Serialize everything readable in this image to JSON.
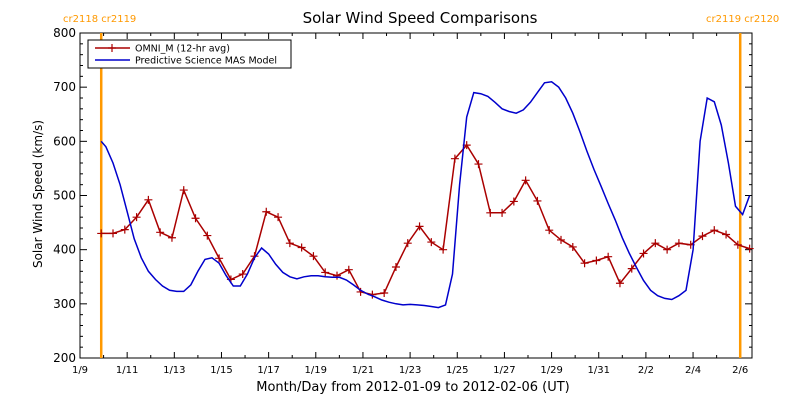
{
  "chart_data": {
    "type": "line",
    "title": "Solar Wind Speed Comparisons",
    "xlabel": "Month/Day from 2012-01-09 to 2012-02-06 (UT)",
    "ylabel": "Solar Wind Speed (km/s)",
    "xlim": [
      0,
      28.5
    ],
    "ylim": [
      200,
      800
    ],
    "x_ticks": [
      {
        "x": 0,
        "label": "1/9"
      },
      {
        "x": 2,
        "label": "1/11"
      },
      {
        "x": 4,
        "label": "1/13"
      },
      {
        "x": 6,
        "label": "1/15"
      },
      {
        "x": 8,
        "label": "1/17"
      },
      {
        "x": 10,
        "label": "1/19"
      },
      {
        "x": 12,
        "label": "1/21"
      },
      {
        "x": 14,
        "label": "1/23"
      },
      {
        "x": 16,
        "label": "1/25"
      },
      {
        "x": 18,
        "label": "1/27"
      },
      {
        "x": 20,
        "label": "1/29"
      },
      {
        "x": 22,
        "label": "1/31"
      },
      {
        "x": 24,
        "label": "2/2"
      },
      {
        "x": 26,
        "label": "2/4"
      },
      {
        "x": 28,
        "label": "2/6"
      }
    ],
    "y_ticks": [
      200,
      300,
      400,
      500,
      600,
      700,
      800
    ],
    "legend_position": "top-left",
    "series": [
      {
        "name": "OMNI_M (12-hr avg)",
        "color": "#aa0000",
        "marker": "plus",
        "x": [
          0.9,
          1.4,
          1.9,
          2.4,
          2.9,
          3.4,
          3.9,
          4.4,
          4.9,
          5.4,
          5.9,
          6.4,
          6.9,
          7.4,
          7.9,
          8.4,
          8.9,
          9.4,
          9.9,
          10.4,
          10.9,
          11.4,
          11.9,
          12.4,
          12.9,
          13.4,
          13.9,
          14.4,
          14.9,
          15.4,
          15.9,
          16.4,
          16.9,
          17.4,
          17.9,
          18.4,
          18.9,
          19.4,
          19.9,
          20.4,
          20.9,
          21.4,
          21.9,
          22.4,
          22.9,
          23.4,
          23.9,
          24.4,
          24.9,
          25.4,
          25.9,
          26.4,
          26.9,
          27.4,
          27.9,
          28.4
        ],
        "y": [
          430,
          430,
          437,
          460,
          492,
          432,
          422,
          510,
          458,
          426,
          384,
          345,
          355,
          388,
          470,
          460,
          412,
          404,
          388,
          358,
          352,
          363,
          322,
          317,
          320,
          368,
          412,
          443,
          414,
          400,
          568,
          593,
          558,
          468,
          468,
          489,
          528,
          490,
          436,
          418,
          405,
          375,
          380,
          387,
          338,
          365,
          393,
          412,
          400,
          412,
          409,
          425,
          436,
          428,
          409,
          402
        ]
      },
      {
        "name": "Predictive Science MAS Model",
        "color": "#0000cc",
        "marker": "none",
        "x": [
          0.9,
          1.1,
          1.4,
          1.7,
          2.0,
          2.3,
          2.6,
          2.9,
          3.2,
          3.5,
          3.8,
          4.1,
          4.4,
          4.7,
          5.0,
          5.3,
          5.6,
          5.9,
          6.2,
          6.5,
          6.8,
          7.1,
          7.4,
          7.7,
          8.0,
          8.3,
          8.6,
          8.9,
          9.2,
          9.5,
          9.8,
          10.1,
          10.4,
          10.7,
          11.0,
          11.3,
          11.6,
          11.9,
          12.2,
          12.5,
          12.8,
          13.1,
          13.4,
          13.7,
          14.0,
          14.3,
          14.6,
          14.9,
          15.2,
          15.5,
          15.8,
          16.1,
          16.4,
          16.7,
          17.0,
          17.3,
          17.6,
          17.9,
          18.2,
          18.5,
          18.8,
          19.1,
          19.4,
          19.7,
          20.0,
          20.3,
          20.6,
          20.9,
          21.2,
          21.5,
          21.8,
          22.1,
          22.4,
          22.7,
          23.0,
          23.3,
          23.6,
          23.9,
          24.2,
          24.5,
          24.8,
          25.1,
          25.4,
          25.7,
          26.0,
          26.3,
          26.6,
          26.9,
          27.2,
          27.5,
          27.8,
          28.1,
          28.4
        ],
        "y": [
          600,
          590,
          560,
          520,
          470,
          420,
          385,
          360,
          345,
          333,
          325,
          323,
          323,
          335,
          360,
          382,
          385,
          375,
          352,
          333,
          333,
          355,
          385,
          403,
          392,
          373,
          358,
          350,
          346,
          350,
          352,
          352,
          350,
          349,
          349,
          344,
          335,
          325,
          318,
          313,
          307,
          303,
          300,
          298,
          299,
          298,
          297,
          295,
          293,
          298,
          355,
          520,
          645,
          690,
          688,
          683,
          672,
          660,
          655,
          652,
          658,
          672,
          690,
          708,
          710,
          700,
          680,
          652,
          618,
          582,
          548,
          517,
          485,
          455,
          422,
          393,
          367,
          343,
          325,
          315,
          310,
          308,
          315,
          325,
          400,
          600,
          680,
          673,
          630,
          560,
          480,
          465,
          500
        ]
      }
    ],
    "annotations": [
      {
        "x": 0.9,
        "label_left": "cr2118",
        "label_right": "cr2119",
        "color": "#ff9900"
      },
      {
        "x": 28.0,
        "label_left": "cr2119",
        "label_right": "cr2120",
        "color": "#ff9900"
      }
    ]
  }
}
